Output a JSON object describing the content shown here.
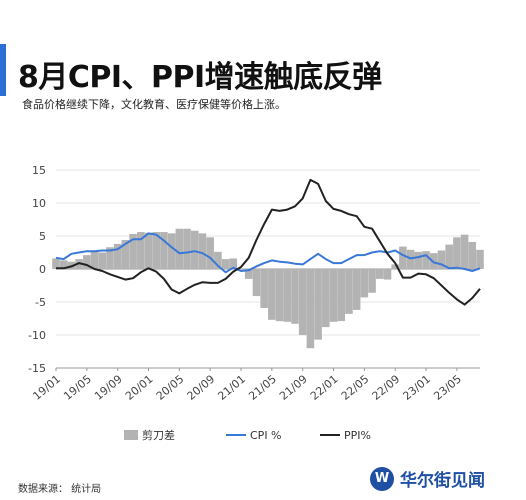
{
  "header": {
    "title": "8月CPI、PPI增速触底反弹",
    "subtitle": "食品价格继续下降，文化教育、医疗保健等价格上涨。"
  },
  "footer": {
    "source": "数据来源： 统计局",
    "brand": "华尔街见闻",
    "brand_logo": "W"
  },
  "colors": {
    "accent": "#2a6fd6",
    "gap": "#b3b3b3",
    "cpi": "#3a78d8",
    "ppi": "#222222"
  },
  "chart_data": {
    "type": "line",
    "title": "",
    "xlabel": "",
    "ylabel": "",
    "ylim": [
      -15,
      15
    ],
    "yticks": [
      -15,
      -10,
      -5,
      0,
      5,
      10,
      15
    ],
    "grid": "horizontal",
    "legend_position": "bottom",
    "x": [
      "19/01",
      "19/02",
      "19/03",
      "19/04",
      "19/05",
      "19/06",
      "19/07",
      "19/08",
      "19/09",
      "19/10",
      "19/11",
      "19/12",
      "20/01",
      "20/02",
      "20/03",
      "20/04",
      "20/05",
      "20/06",
      "20/07",
      "20/08",
      "20/09",
      "20/10",
      "20/11",
      "20/12",
      "21/01",
      "21/02",
      "21/03",
      "21/04",
      "21/05",
      "21/06",
      "21/07",
      "21/08",
      "21/09",
      "21/10",
      "21/11",
      "21/12",
      "22/01",
      "22/02",
      "22/03",
      "22/04",
      "22/05",
      "22/06",
      "22/07",
      "22/08",
      "22/09",
      "22/10",
      "22/11",
      "22/12",
      "23/01",
      "23/02",
      "23/03",
      "23/04",
      "23/05",
      "23/06",
      "23/07",
      "23/08"
    ],
    "xtick_labels": [
      "19/01",
      "19/05",
      "19/09",
      "20/01",
      "20/05",
      "20/09",
      "21/01",
      "21/05",
      "21/09",
      "22/01",
      "22/05",
      "22/09",
      "23/01",
      "23/05"
    ],
    "series": [
      {
        "name": "剪刀差",
        "type": "bar",
        "values": [
          1.6,
          1.3,
          1.1,
          1.5,
          2.1,
          2.7,
          2.5,
          3.3,
          3.8,
          4.4,
          5.3,
          5.6,
          5.5,
          5.6,
          5.6,
          5.4,
          6.1,
          6.1,
          5.8,
          5.4,
          4.8,
          2.6,
          1.5,
          1.6,
          0.1,
          -1.5,
          -4.1,
          -5.9,
          -7.7,
          -7.9,
          -8.0,
          -8.3,
          -10.0,
          -12.0,
          -10.7,
          -8.8,
          -8.0,
          -7.9,
          -6.8,
          -6.2,
          -4.3,
          -3.6,
          -1.5,
          -1.6,
          0.7,
          3.4,
          2.9,
          2.6,
          2.7,
          2.4,
          2.8,
          3.7,
          4.8,
          5.2,
          4.1,
          2.9
        ]
      },
      {
        "name": "CPI %",
        "type": "line",
        "values": [
          1.7,
          1.5,
          2.3,
          2.5,
          2.7,
          2.7,
          2.8,
          2.8,
          3.0,
          3.8,
          4.5,
          4.5,
          5.4,
          5.2,
          4.3,
          3.3,
          2.4,
          2.5,
          2.7,
          2.4,
          1.7,
          0.5,
          -0.5,
          0.2,
          -0.3,
          -0.2,
          0.4,
          0.9,
          1.3,
          1.1,
          1.0,
          0.8,
          0.7,
          1.5,
          2.3,
          1.5,
          0.9,
          0.9,
          1.5,
          2.1,
          2.1,
          2.5,
          2.7,
          2.5,
          2.8,
          2.1,
          1.6,
          1.8,
          2.1,
          1.0,
          0.7,
          0.1,
          0.2,
          0.0,
          -0.3,
          0.1
        ]
      },
      {
        "name": "PPI%",
        "type": "line",
        "values": [
          0.1,
          0.1,
          0.4,
          0.9,
          0.6,
          0.0,
          -0.3,
          -0.8,
          -1.2,
          -1.6,
          -1.4,
          -0.5,
          0.1,
          -0.4,
          -1.5,
          -3.1,
          -3.7,
          -3.0,
          -2.4,
          -2.0,
          -2.1,
          -2.1,
          -1.5,
          -0.4,
          0.3,
          1.7,
          4.4,
          6.8,
          9.0,
          8.8,
          9.0,
          9.5,
          10.7,
          13.5,
          12.9,
          10.3,
          9.1,
          8.8,
          8.3,
          8.0,
          6.4,
          6.1,
          4.2,
          2.3,
          0.9,
          -1.3,
          -1.3,
          -0.7,
          -0.8,
          -1.4,
          -2.5,
          -3.6,
          -4.6,
          -5.4,
          -4.4,
          -3.0
        ]
      }
    ]
  }
}
